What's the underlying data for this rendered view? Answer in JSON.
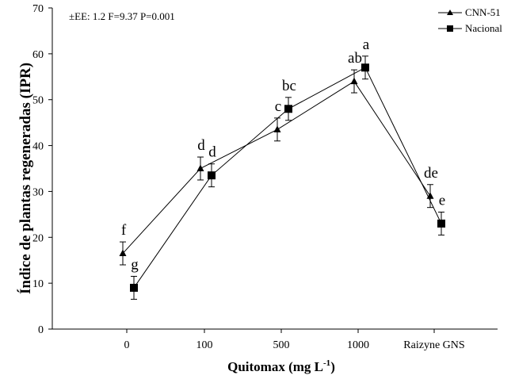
{
  "chart_data": {
    "type": "line",
    "title": "",
    "xlabel": "Quitomax (mg L",
    "xlabel_sup": "-1",
    "xlabel_tail": ")",
    "ylabel": "Índice de plantas regeneradas (IPR)",
    "annotation": "±EE: 1.2 F=9.37 P=0.001",
    "categories": [
      "0",
      "100",
      "500",
      "1000",
      "Raizyne GNS"
    ],
    "ylim": [
      0,
      70
    ],
    "yticks": [
      "0",
      "10",
      "20",
      "30",
      "40",
      "50",
      "60",
      "70"
    ],
    "series": [
      {
        "name": "CNN-51",
        "marker": "triangle",
        "values": [
          16.5,
          35.0,
          43.5,
          54.0,
          29.0
        ],
        "errors": [
          2.5,
          2.5,
          2.5,
          2.5,
          2.5
        ],
        "letters": [
          "f",
          "d",
          "c",
          "ab",
          "de"
        ]
      },
      {
        "name": "Nacional",
        "marker": "square",
        "values": [
          9.0,
          33.5,
          48.0,
          57.0,
          23.0
        ],
        "errors": [
          2.5,
          2.5,
          2.5,
          2.5,
          2.5
        ],
        "letters": [
          "g",
          "d",
          "bc",
          "a",
          "e"
        ]
      }
    ],
    "legend_position": "top-right",
    "grid": false
  }
}
